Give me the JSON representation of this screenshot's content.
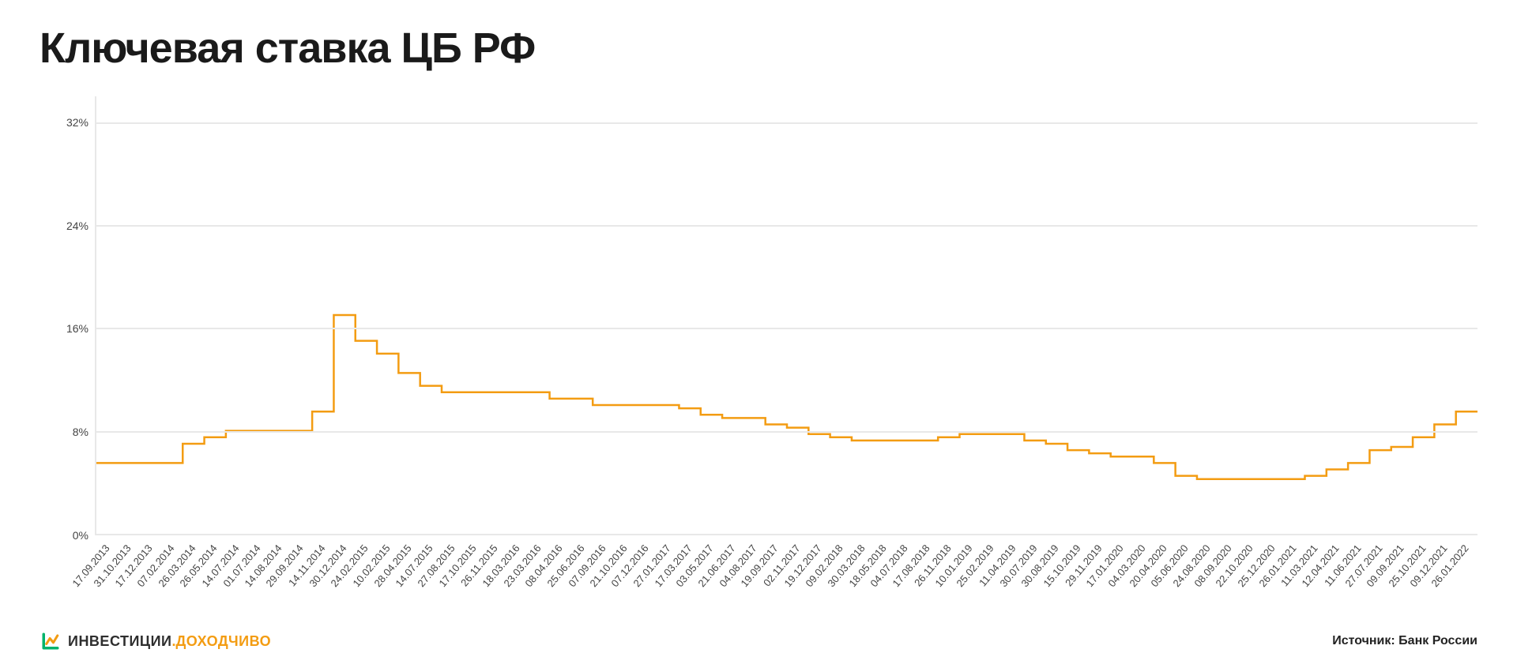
{
  "title": "Ключевая ставка ЦБ РФ",
  "chart": {
    "type": "step-line",
    "line_color": "#f39c12",
    "line_width": 2.5,
    "background_color": "#ffffff",
    "grid_color": "#e8e8e8",
    "axis_color": "#e8e8e8",
    "ylim": [
      0,
      34
    ],
    "y_ticks": [
      0,
      8,
      16,
      24,
      32
    ],
    "y_tick_suffix": "%",
    "y_label_fontsize": 14,
    "x_label_fontsize": 13,
    "x_label_rotation_deg": -50,
    "x_labels": [
      "17.09.2013",
      "31.10.2013",
      "17.12.2013",
      "07.02.2014",
      "26.03.2014",
      "26.05.2014",
      "14.07.2014",
      "01.07.2014",
      "14.08.2014",
      "29.09.2014",
      "14.11.2014",
      "30.12.2014",
      "24.02.2015",
      "10.02.2015",
      "28.04.2015",
      "14.07.2015",
      "27.08.2015",
      "17.10.2015",
      "26.11.2015",
      "18.03.2016",
      "23.03.2016",
      "08.04.2016",
      "25.06.2016",
      "07.09.2016",
      "21.10.2016",
      "07.12.2016",
      "27.01.2017",
      "17.03.2017",
      "03.05.2017",
      "21.06.2017",
      "04.08.2017",
      "19.09.2017",
      "02.11.2017",
      "19.12.2017",
      "09.02.2018",
      "30.03.2018",
      "18.05.2018",
      "04.07.2018",
      "17.08.2018",
      "26.11.2018",
      "10.01.2019",
      "25.02.2019",
      "11.04.2019",
      "30.07.2019",
      "30.08.2019",
      "15.10.2019",
      "29.11.2019",
      "17.01.2020",
      "04.03.2020",
      "20.04.2020",
      "05.06.2020",
      "24.08.2020",
      "08.09.2020",
      "22.10.2020",
      "25.12.2020",
      "26.01.2021",
      "11.03.2021",
      "12.04.2021",
      "11.06.2021",
      "27.07.2021",
      "09.09.2021",
      "25.10.2021",
      "09.12.2021",
      "26.01.2022"
    ],
    "series": {
      "name": "Ключевая ставка",
      "values": [
        5.5,
        5.5,
        5.5,
        5.5,
        7.0,
        7.5,
        8.0,
        8.0,
        8.0,
        8.0,
        9.5,
        17.0,
        15.0,
        14.0,
        12.5,
        11.5,
        11.0,
        11.0,
        11.0,
        11.0,
        11.0,
        10.5,
        10.5,
        10.0,
        10.0,
        10.0,
        10.0,
        9.75,
        9.25,
        9.0,
        9.0,
        8.5,
        8.25,
        7.75,
        7.5,
        7.25,
        7.25,
        7.25,
        7.25,
        7.5,
        7.75,
        7.75,
        7.75,
        7.25,
        7.0,
        6.5,
        6.25,
        6.0,
        6.0,
        5.5,
        4.5,
        4.25,
        4.25,
        4.25,
        4.25,
        4.25,
        4.5,
        5.0,
        5.5,
        6.5,
        6.75,
        7.5,
        8.5,
        9.5
      ]
    }
  },
  "footer": {
    "brand_word_1": "ИНВЕСТИЦИИ",
    "brand_dot": ".",
    "brand_word_2": "ДОХОДЧИВО",
    "brand_logo_colors": {
      "stroke1": "#00b36b",
      "stroke2": "#f39c12"
    },
    "source_label": "Источник: Банк России"
  }
}
